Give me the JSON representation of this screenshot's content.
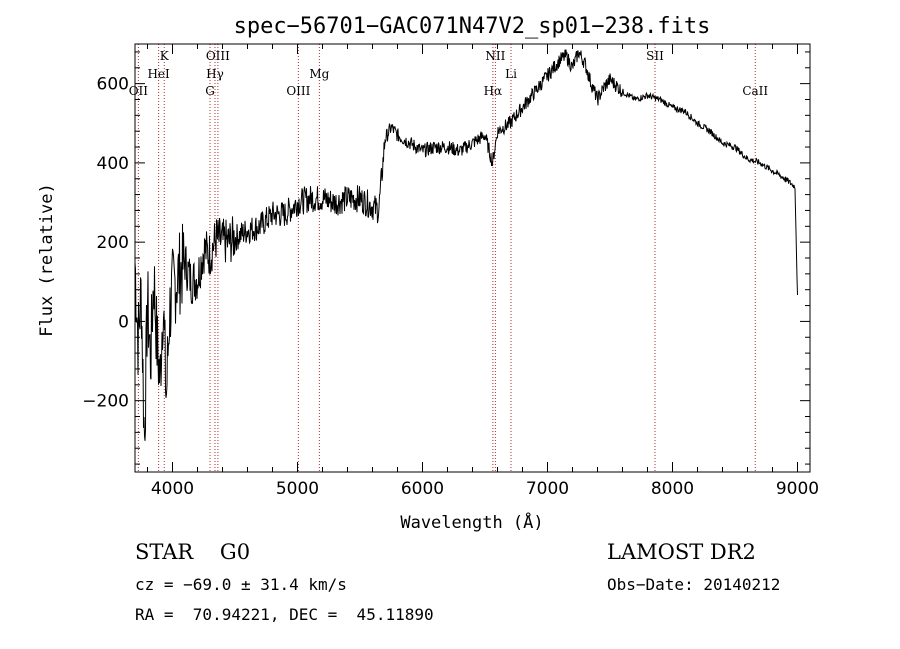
{
  "chart_data": {
    "type": "line",
    "title": "spec−56701−GAC071N47V2_sp01−238.fits",
    "xlabel": "Wavelength (Å)",
    "ylabel": "Flux (relative)",
    "xlim": [
      3700,
      9100
    ],
    "ylim": [
      -380,
      700
    ],
    "x_ticks": [
      {
        "value": 4000,
        "label": "4000"
      },
      {
        "value": 5000,
        "label": "5000"
      },
      {
        "value": 6000,
        "label": "6000"
      },
      {
        "value": 7000,
        "label": "7000"
      },
      {
        "value": 8000,
        "label": "8000"
      },
      {
        "value": 9000,
        "label": "9000"
      }
    ],
    "y_ticks": [
      {
        "value": -200,
        "label": "−200"
      },
      {
        "value": 0,
        "label": "0"
      },
      {
        "value": 200,
        "label": "200"
      },
      {
        "value": 400,
        "label": "400"
      },
      {
        "value": 600,
        "label": "600"
      }
    ],
    "grid": false,
    "series": [
      {
        "color": "#000000",
        "x": [
          3700,
          3725,
          3750,
          3775,
          3800,
          3825,
          3850,
          3875,
          3900,
          3925,
          3950,
          3975,
          4000,
          4050,
          4100,
          4150,
          4200,
          4250,
          4300,
          4350,
          4400,
          4450,
          4500,
          4600,
          4700,
          4800,
          4900,
          5000,
          5100,
          5200,
          5300,
          5400,
          5500,
          5600,
          5650,
          5700,
          5750,
          5800,
          5900,
          6000,
          6100,
          6200,
          6300,
          6400,
          6500,
          6560,
          6600,
          6700,
          6800,
          6900,
          7000,
          7050,
          7100,
          7150,
          7200,
          7250,
          7300,
          7350,
          7400,
          7450,
          7500,
          7600,
          7700,
          7800,
          7900,
          8000,
          8100,
          8200,
          8300,
          8400,
          8500,
          8600,
          8700,
          8800,
          8900,
          8980,
          9000
        ],
        "y": [
          150,
          -50,
          80,
          -300,
          50,
          -100,
          120,
          -50,
          -150,
          60,
          -200,
          20,
          80,
          120,
          150,
          100,
          110,
          180,
          170,
          210,
          200,
          200,
          210,
          230,
          240,
          270,
          270,
          300,
          310,
          310,
          300,
          310,
          310,
          290,
          280,
          460,
          490,
          470,
          450,
          430,
          440,
          440,
          430,
          450,
          470,
          400,
          480,
          500,
          540,
          580,
          620,
          640,
          660,
          670,
          640,
          680,
          650,
          600,
          560,
          590,
          610,
          580,
          560,
          570,
          560,
          540,
          530,
          500,
          480,
          450,
          440,
          410,
          400,
          380,
          360,
          340,
          60
        ]
      }
    ],
    "line_markers": [
      {
        "wavelength": 3727,
        "label": "OII",
        "row": 3
      },
      {
        "wavelength": 3889,
        "label": "HeI",
        "row": 2
      },
      {
        "wavelength": 3934,
        "label": "K",
        "row": 1
      },
      {
        "wavelength": 4300,
        "label": "G",
        "row": 3
      },
      {
        "wavelength": 4340,
        "label": "Hγ",
        "row": 2
      },
      {
        "wavelength": 4363,
        "label": "OIII",
        "row": 1
      },
      {
        "wavelength": 5007,
        "label": "OIII",
        "row": 3
      },
      {
        "wavelength": 5175,
        "label": "Mg",
        "row": 2
      },
      {
        "wavelength": 6563,
        "label": "Hα",
        "row": 3
      },
      {
        "wavelength": 6583,
        "label": "NII",
        "row": 1
      },
      {
        "wavelength": 6708,
        "label": "Li",
        "row": 2
      },
      {
        "wavelength": 7860,
        "label": "SII",
        "row": 1
      },
      {
        "wavelength": 8662,
        "label": "CaII",
        "row": 3
      }
    ]
  },
  "info": {
    "class_line": "STAR    G0",
    "survey": "LAMOST DR2",
    "cz": "cz = −69.0 ± 31.4 km/s",
    "obs_date": "Obs−Date: 20140212",
    "coords": "RA =  70.94221, DEC =  45.11890"
  },
  "colors": {
    "spectrum": "#000000",
    "marker_line": "#b03030",
    "axis": "#000000"
  }
}
